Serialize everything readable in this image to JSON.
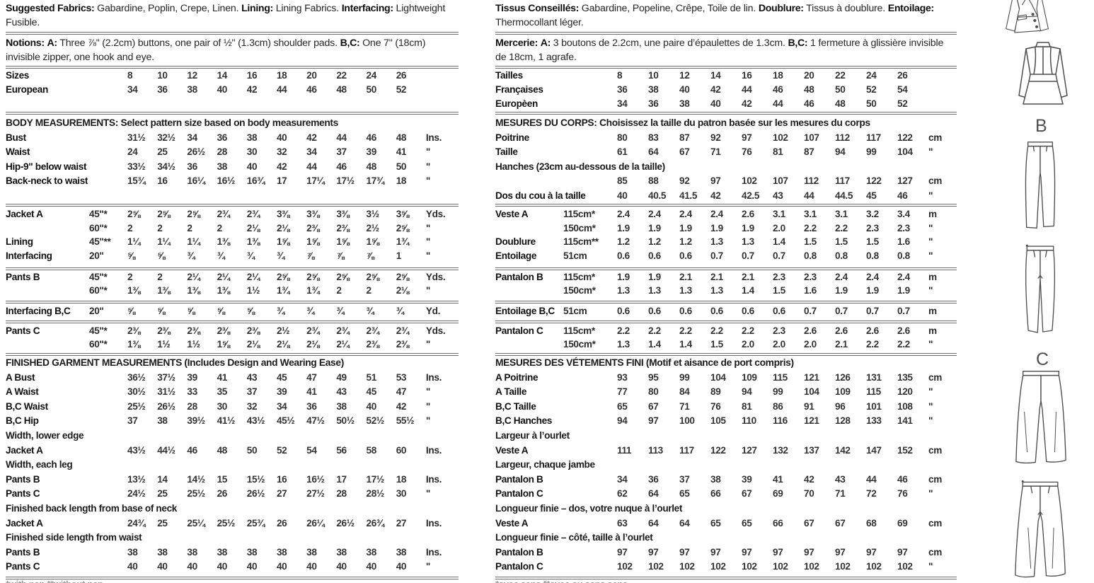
{
  "english": {
    "fabrics": {
      "b1": "Suggested Fabrics:",
      "t1": "Gabardine, Poplin, Crepe, Linen.",
      "b2": "Lining:",
      "t2": "Lining Fabrics.",
      "b3": "Interfacing:",
      "t3": "Lightweight Fusible."
    },
    "notions": {
      "b1": "Notions:",
      "b2": "A:",
      "t1": "Three ⅞\" (2.2cm) buttons, one pair of ½\" (1.3cm) shoulder pads.",
      "b3": "B,C:",
      "t2": "One 7\" (18cm) invisible zipper, one hook and eye."
    },
    "sizes": {
      "rows": [
        {
          "label": "Sizes",
          "w": "",
          "vals": [
            "8",
            "10",
            "12",
            "14",
            "16",
            "18",
            "20",
            "22",
            "24",
            "26"
          ],
          "unit": ""
        },
        {
          "label": "European",
          "w": "",
          "vals": [
            "34",
            "36",
            "38",
            "40",
            "42",
            "44",
            "46",
            "48",
            "50",
            "52"
          ],
          "unit": ""
        }
      ]
    },
    "body": {
      "title": "BODY MEASUREMENTS: Select pattern size based on body measurements",
      "rows": [
        {
          "label": "Bust",
          "w": "",
          "vals": [
            "31½",
            "32½",
            "34",
            "36",
            "38",
            "40",
            "42",
            "44",
            "46",
            "48"
          ],
          "unit": "Ins."
        },
        {
          "label": "Waist",
          "w": "",
          "vals": [
            "24",
            "25",
            "26½",
            "28",
            "30",
            "32",
            "34",
            "37",
            "39",
            "41"
          ],
          "unit": "\""
        },
        {
          "label": "Hip-9\" below waist",
          "w": "",
          "vals": [
            "33½",
            "34½",
            "36",
            "38",
            "40",
            "42",
            "44",
            "46",
            "48",
            "50"
          ],
          "unit": "\""
        },
        {
          "label": "Back-neck to waist",
          "w": "",
          "vals": [
            "15¾",
            "16",
            "16¼",
            "16½",
            "16¾",
            "17",
            "17¼",
            "17½",
            "17¾",
            "18"
          ],
          "unit": "\""
        }
      ]
    },
    "yardage_jacket": {
      "rows": [
        {
          "label": "Jacket A",
          "w": "45\"*",
          "vals": [
            "2⅝",
            "2⅝",
            "2⅝",
            "2¾",
            "2¾",
            "3⅜",
            "3⅜",
            "3⅜",
            "3½",
            "3⅝"
          ],
          "unit": "Yds."
        },
        {
          "label": "",
          "w": "60\"*",
          "vals": [
            "2",
            "2",
            "2",
            "2",
            "2⅛",
            "2⅛",
            "2⅜",
            "2⅜",
            "2½",
            "2⅝"
          ],
          "unit": "\""
        },
        {
          "label": "Lining",
          "w": "45\"**",
          "vals": [
            "1¼",
            "1¼",
            "1¼",
            "1⅜",
            "1⅜",
            "1⅝",
            "1⅝",
            "1⅝",
            "1⅝",
            "1¾"
          ],
          "unit": "\""
        },
        {
          "label": "Interfacing",
          "w": "20\"",
          "vals": [
            "⅝",
            "⅝",
            "¾",
            "¾",
            "¾",
            "¾",
            "⅞",
            "⅞",
            "⅞",
            "1"
          ],
          "unit": "\""
        }
      ]
    },
    "yardage_pants_b": {
      "rows": [
        {
          "label": "Pants B",
          "w": "45\"*",
          "vals": [
            "2",
            "2",
            "2¼",
            "2¼",
            "2¼",
            "2⅝",
            "2⅝",
            "2⅝",
            "2⅝",
            "2⅝"
          ],
          "unit": "Yds."
        },
        {
          "label": "",
          "w": "60\"*",
          "vals": [
            "1⅜",
            "1⅜",
            "1⅜",
            "1⅜",
            "1½",
            "1¾",
            "1¾",
            "2",
            "2",
            "2⅛"
          ],
          "unit": "\""
        }
      ]
    },
    "interfacing_bc": {
      "rows": [
        {
          "label": "Interfacing B,C",
          "w": "20\"",
          "vals": [
            "⅝",
            "⅝",
            "⅝",
            "⅝",
            "⅝",
            "¾",
            "¾",
            "¾",
            "¾",
            "¾"
          ],
          "unit": "Yd."
        }
      ]
    },
    "yardage_pants_c": {
      "rows": [
        {
          "label": "Pants C",
          "w": "45\"*",
          "vals": [
            "2⅜",
            "2⅜",
            "2⅜",
            "2⅜",
            "2⅜",
            "2½",
            "2¾",
            "2¾",
            "2¾",
            "2¾"
          ],
          "unit": "Yds."
        },
        {
          "label": "",
          "w": "60\"*",
          "vals": [
            "1⅜",
            "1½",
            "1½",
            "1⅝",
            "2⅛",
            "2⅛",
            "2⅛",
            "2¼",
            "2⅜",
            "2⅜"
          ],
          "unit": "\""
        }
      ]
    },
    "finished": {
      "title": "FINISHED GARMENT MEASUREMENTS (Includes Design and Wearing Ease)",
      "rows": [
        {
          "label": "A Bust",
          "w": "",
          "vals": [
            "36½",
            "37½",
            "39",
            "41",
            "43",
            "45",
            "47",
            "49",
            "51",
            "53"
          ],
          "unit": "Ins."
        },
        {
          "label": "A Waist",
          "w": "",
          "vals": [
            "30½",
            "31½",
            "33",
            "35",
            "37",
            "39",
            "41",
            "43",
            "45",
            "47"
          ],
          "unit": "\""
        },
        {
          "label": "B,C Waist",
          "w": "",
          "vals": [
            "25½",
            "26½",
            "28",
            "30",
            "32",
            "34",
            "36",
            "38",
            "40",
            "42"
          ],
          "unit": "\""
        },
        {
          "label": "B,C Hip",
          "w": "",
          "vals": [
            "37",
            "38",
            "39½",
            "41½",
            "43½",
            "45½",
            "47½",
            "50½",
            "52½",
            "55½"
          ],
          "unit": "\""
        },
        {
          "sub": "Width, lower edge"
        },
        {
          "label": "Jacket A",
          "w": "",
          "vals": [
            "43½",
            "44½",
            "46",
            "48",
            "50",
            "52",
            "54",
            "56",
            "58",
            "60"
          ],
          "unit": "Ins."
        },
        {
          "sub": "Width, each leg"
        },
        {
          "label": "Pants B",
          "w": "",
          "vals": [
            "13½",
            "14",
            "14½",
            "15",
            "15½",
            "16",
            "16½",
            "17",
            "17½",
            "18"
          ],
          "unit": "Ins."
        },
        {
          "label": "Pants C",
          "w": "",
          "vals": [
            "24½",
            "25",
            "25½",
            "26",
            "26½",
            "27",
            "27½",
            "28",
            "28½",
            "30"
          ],
          "unit": "\""
        },
        {
          "sub": "Finished back length from base of neck"
        },
        {
          "label": "Jacket A",
          "w": "",
          "vals": [
            "24¾",
            "25",
            "25¼",
            "25½",
            "25¾",
            "26",
            "26¼",
            "26½",
            "26¾",
            "27"
          ],
          "unit": "Ins."
        },
        {
          "sub": "Finished side length from waist"
        },
        {
          "label": "Pants B",
          "w": "",
          "vals": [
            "38",
            "38",
            "38",
            "38",
            "38",
            "38",
            "38",
            "38",
            "38",
            "38"
          ],
          "unit": "Ins."
        },
        {
          "label": "Pants C",
          "w": "",
          "vals": [
            "40",
            "40",
            "40",
            "40",
            "40",
            "40",
            "40",
            "40",
            "40",
            "40"
          ],
          "unit": "\""
        }
      ]
    },
    "footnote": "*with nap  **without nap"
  },
  "french": {
    "fabrics": {
      "b1": "Tissus Conseillés:",
      "t1": "Gabardine, Popeline, Crêpe, Toile de lin.",
      "b2": "Doublure:",
      "t2": "Tissus à doublure.",
      "b3": "Entoilage:",
      "t3": "Thermocollant léger."
    },
    "notions": {
      "b1": "Mercerie:",
      "b2": "A:",
      "t1": "3 boutons de 2.2cm, une paire d’épaulettes de 1.3cm.",
      "b3": "B,C:",
      "t2": "1 fermeture à glissière invisible de 18cm, 1 agrafe."
    },
    "sizes": {
      "rows": [
        {
          "label": "Tailles",
          "w": "",
          "vals": [
            "8",
            "10",
            "12",
            "14",
            "16",
            "18",
            "20",
            "22",
            "24",
            "26"
          ],
          "unit": ""
        },
        {
          "label": "Françaises",
          "w": "",
          "vals": [
            "36",
            "38",
            "40",
            "42",
            "44",
            "46",
            "48",
            "50",
            "52",
            "54"
          ],
          "unit": ""
        },
        {
          "label": "Europèen",
          "w": "",
          "vals": [
            "34",
            "36",
            "38",
            "40",
            "42",
            "44",
            "46",
            "48",
            "50",
            "52"
          ],
          "unit": ""
        }
      ]
    },
    "body": {
      "title": "MESURES DU CORPS: Choisissez la taille du patron basée sur les mesures du corps",
      "rows": [
        {
          "label": "Poitrine",
          "w": "",
          "vals": [
            "80",
            "83",
            "87",
            "92",
            "97",
            "102",
            "107",
            "112",
            "117",
            "122"
          ],
          "unit": "cm"
        },
        {
          "label": "Taille",
          "w": "",
          "vals": [
            "61",
            "64",
            "67",
            "71",
            "76",
            "81",
            "87",
            "94",
            "99",
            "104"
          ],
          "unit": "\""
        },
        {
          "sub": "Hanches (23cm au-dessous de la taille)"
        },
        {
          "label": "",
          "w": "",
          "vals": [
            "85",
            "88",
            "92",
            "97",
            "102",
            "107",
            "112",
            "117",
            "122",
            "127"
          ],
          "unit": "cm"
        },
        {
          "label": "Dos du cou à la taille",
          "w": "",
          "vals": [
            "40",
            "40.5",
            "41.5",
            "42",
            "42.5",
            "43",
            "44",
            "44.5",
            "45",
            "46"
          ],
          "unit": "\""
        }
      ]
    },
    "yardage_jacket": {
      "rows": [
        {
          "label": "Veste A",
          "w": "115cm*",
          "vals": [
            "2.4",
            "2.4",
            "2.4",
            "2.4",
            "2.6",
            "3.1",
            "3.1",
            "3.1",
            "3.2",
            "3.4"
          ],
          "unit": "m"
        },
        {
          "label": "",
          "w": "150cm*",
          "vals": [
            "1.9",
            "1.9",
            "1.9",
            "1.9",
            "1.9",
            "2.0",
            "2.2",
            "2.2",
            "2.3",
            "2.3"
          ],
          "unit": "\""
        },
        {
          "label": "Doublure",
          "w": "115cm**",
          "vals": [
            "1.2",
            "1.2",
            "1.2",
            "1.3",
            "1.3",
            "1.4",
            "1.5",
            "1.5",
            "1.5",
            "1.6"
          ],
          "unit": "\""
        },
        {
          "label": "Entoilage",
          "w": "51cm",
          "vals": [
            "0.6",
            "0.6",
            "0.6",
            "0.7",
            "0.7",
            "0.7",
            "0.8",
            "0.8",
            "0.8",
            "0.8"
          ],
          "unit": "\""
        }
      ]
    },
    "yardage_pants_b": {
      "rows": [
        {
          "label": "Pantalon B",
          "w": "115cm*",
          "vals": [
            "1.9",
            "1.9",
            "2.1",
            "2.1",
            "2.1",
            "2.3",
            "2.3",
            "2.4",
            "2.4",
            "2.4"
          ],
          "unit": "m"
        },
        {
          "label": "",
          "w": "150cm*",
          "vals": [
            "1.3",
            "1.3",
            "1.3",
            "1.3",
            "1.4",
            "1.5",
            "1.6",
            "1.9",
            "1.9",
            "1.9"
          ],
          "unit": "\""
        }
      ]
    },
    "interfacing_bc": {
      "rows": [
        {
          "label": "Entoilage B,C",
          "w": "51cm",
          "vals": [
            "0.6",
            "0.6",
            "0.6",
            "0.6",
            "0.6",
            "0.6",
            "0.7",
            "0.7",
            "0.7",
            "0.7"
          ],
          "unit": "m"
        }
      ]
    },
    "yardage_pants_c": {
      "rows": [
        {
          "label": "Pantalon C",
          "w": "115cm*",
          "vals": [
            "2.2",
            "2.2",
            "2.2",
            "2.2",
            "2.2",
            "2.3",
            "2.6",
            "2.6",
            "2.6",
            "2.6"
          ],
          "unit": "m"
        },
        {
          "label": "",
          "w": "150cm*",
          "vals": [
            "1.3",
            "1.4",
            "1.4",
            "1.5",
            "2.0",
            "2.0",
            "2.0",
            "2.1",
            "2.2",
            "2.2"
          ],
          "unit": "\""
        }
      ]
    },
    "finished": {
      "title": "MESURES DES VÉTEMENTS FINI (Motif et aisance de port compris)",
      "rows": [
        {
          "label": "A Poitrine",
          "w": "",
          "vals": [
            "93",
            "95",
            "99",
            "104",
            "109",
            "115",
            "121",
            "126",
            "131",
            "135"
          ],
          "unit": "cm"
        },
        {
          "label": "A Taille",
          "w": "",
          "vals": [
            "77",
            "80",
            "84",
            "89",
            "94",
            "99",
            "104",
            "109",
            "115",
            "120"
          ],
          "unit": "\""
        },
        {
          "label": "B,C Taille",
          "w": "",
          "vals": [
            "65",
            "67",
            "71",
            "76",
            "81",
            "86",
            "91",
            "96",
            "101",
            "108"
          ],
          "unit": "\""
        },
        {
          "label": "B,C Hanches",
          "w": "",
          "vals": [
            "94",
            "97",
            "100",
            "105",
            "110",
            "116",
            "121",
            "128",
            "133",
            "141"
          ],
          "unit": "\""
        },
        {
          "sub": "Largeur à l’ourlet"
        },
        {
          "label": "Veste A",
          "w": "",
          "vals": [
            "111",
            "113",
            "117",
            "122",
            "127",
            "132",
            "137",
            "142",
            "147",
            "152"
          ],
          "unit": "cm"
        },
        {
          "sub": "Largeur, chaque jambe"
        },
        {
          "label": "Pantalon B",
          "w": "",
          "vals": [
            "34",
            "36",
            "37",
            "38",
            "39",
            "41",
            "42",
            "43",
            "44",
            "46"
          ],
          "unit": "cm"
        },
        {
          "label": "Pantalon C",
          "w": "",
          "vals": [
            "62",
            "64",
            "65",
            "66",
            "67",
            "69",
            "70",
            "71",
            "72",
            "76"
          ],
          "unit": "\""
        },
        {
          "sub": "Longueur finie – dos, votre nuque à l’ourlet"
        },
        {
          "label": "Veste A",
          "w": "",
          "vals": [
            "63",
            "64",
            "64",
            "65",
            "65",
            "66",
            "67",
            "67",
            "68",
            "69"
          ],
          "unit": "cm"
        },
        {
          "sub": "Longueur finie – côté, taille à l’ourlet"
        },
        {
          "label": "Pantalon B",
          "w": "",
          "vals": [
            "97",
            "97",
            "97",
            "97",
            "97",
            "97",
            "97",
            "97",
            "97",
            "97"
          ],
          "unit": "cm"
        },
        {
          "label": "Pantalon C",
          "w": "",
          "vals": [
            "102",
            "102",
            "102",
            "102",
            "102",
            "102",
            "102",
            "102",
            "102",
            "102"
          ],
          "unit": "\""
        }
      ]
    },
    "footnote": "*avec sens  **avec ou sans sens"
  },
  "art": {
    "view_b": "B",
    "view_c": "C"
  }
}
